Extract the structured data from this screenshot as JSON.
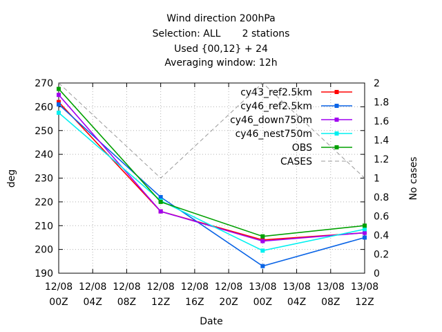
{
  "chart_data": {
    "type": "line",
    "title": "Wind direction 200hPa",
    "subtitle_lines": [
      "Selection: ALL       2 stations",
      "Used {00,12} + 24",
      "Averaging window: 12h"
    ],
    "xlabel": "Date",
    "ylabel": "deg",
    "y2label": "No cases",
    "ylim": [
      190,
      270
    ],
    "y_ticks": [
      190,
      200,
      210,
      220,
      230,
      240,
      250,
      260,
      270
    ],
    "y2lim": [
      0,
      2
    ],
    "y2_ticks": [
      "0",
      "0.2",
      "0.4",
      "0.6",
      "0.8",
      "1",
      "1.2",
      "1.4",
      "1.6",
      "1.8",
      "2"
    ],
    "x_ticks": [
      {
        "date": "12/08",
        "hour": "00Z"
      },
      {
        "date": "12/08",
        "hour": "04Z"
      },
      {
        "date": "12/08",
        "hour": "08Z"
      },
      {
        "date": "12/08",
        "hour": "12Z"
      },
      {
        "date": "12/08",
        "hour": "16Z"
      },
      {
        "date": "12/08",
        "hour": "20Z"
      },
      {
        "date": "13/08",
        "hour": "00Z"
      },
      {
        "date": "13/08",
        "hour": "04Z"
      },
      {
        "date": "13/08",
        "hour": "08Z"
      },
      {
        "date": "13/08",
        "hour": "12Z"
      }
    ],
    "x": [
      "12/08 00Z",
      "12/08 12Z",
      "13/08 00Z",
      "13/08 12Z"
    ],
    "legend_position": "top-right",
    "grid": true,
    "series": [
      {
        "name": "cy43_ref2.5km",
        "color": "#ff0000",
        "marker": "square",
        "axis": "y",
        "values": [
          262,
          216,
          204,
          207
        ]
      },
      {
        "name": "cy46_ref2.5km",
        "color": "#0a64e6",
        "marker": "square",
        "axis": "y",
        "values": [
          261,
          222,
          193,
          205
        ]
      },
      {
        "name": "cy46_down750m",
        "color": "#a000f0",
        "marker": "square",
        "axis": "y",
        "values": [
          265,
          216,
          203.5,
          207
        ]
      },
      {
        "name": "cy46_nest750m",
        "color": "#00f0f0",
        "marker": "square",
        "axis": "y",
        "values": [
          257.5,
          220.5,
          199.5,
          208.5
        ]
      },
      {
        "name": "OBS",
        "color": "#00a000",
        "marker": "square",
        "axis": "y",
        "values": [
          267.5,
          220,
          205.5,
          210
        ]
      },
      {
        "name": "CASES",
        "color": "#999999",
        "marker": "none",
        "dashed": true,
        "axis": "y2",
        "values": [
          2,
          1,
          2,
          1
        ]
      }
    ]
  }
}
